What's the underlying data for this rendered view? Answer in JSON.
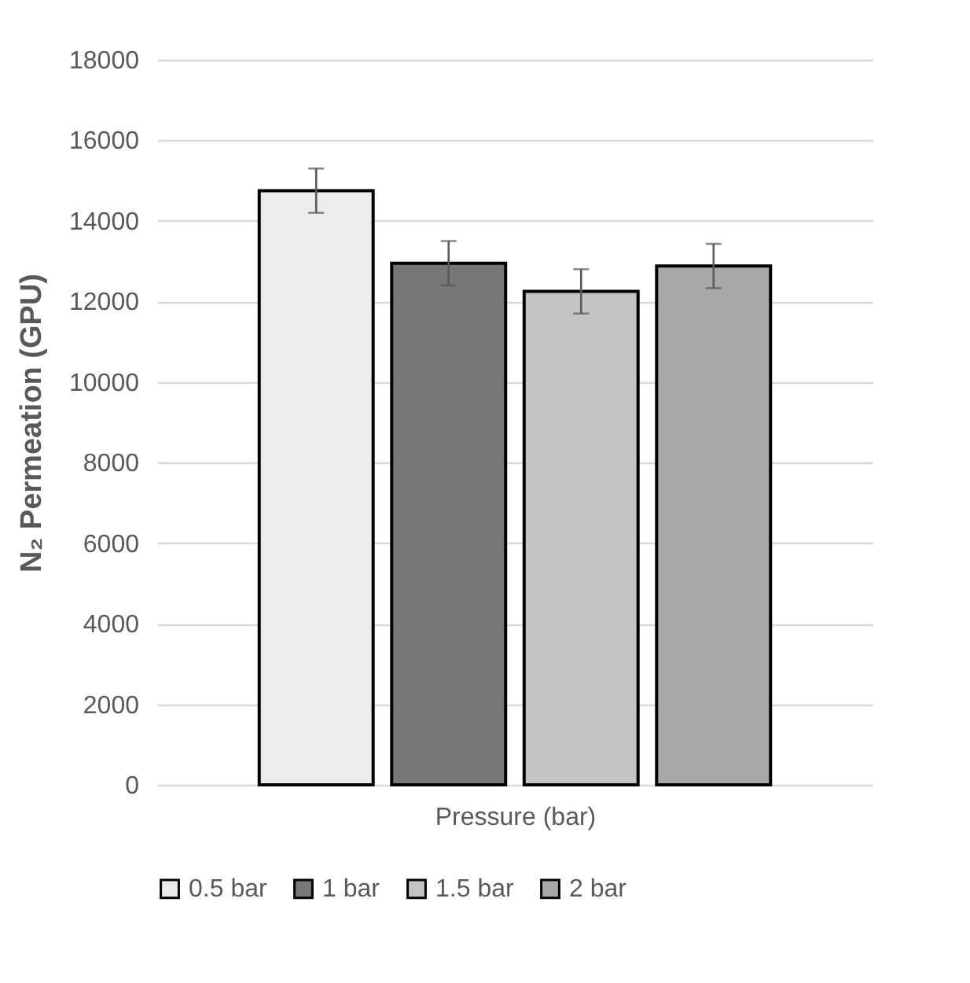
{
  "chart_data": {
    "type": "bar",
    "categories": [
      null
    ],
    "xlabel": "Pressure (bar)",
    "ylabel": "N₂ Permeation (GPU)",
    "ylim": [
      0,
      18000
    ],
    "yticks": [
      0,
      2000,
      4000,
      6000,
      8000,
      10000,
      12000,
      14000,
      16000,
      18000
    ],
    "grid": "y",
    "legend": "bottom",
    "series": [
      {
        "name": "0.5 bar",
        "color": "#ececec",
        "values": [
          14750
        ],
        "errors": [
          550
        ]
      },
      {
        "name": "1 bar",
        "color": "#777777",
        "values": [
          12950
        ],
        "errors": [
          550
        ]
      },
      {
        "name": "1.5 bar",
        "color": "#c4c4c4",
        "values": [
          12250
        ],
        "errors": [
          550
        ]
      },
      {
        "name": "2 bar",
        "color": "#a8a8a8",
        "values": [
          12880
        ],
        "errors": [
          550
        ]
      }
    ]
  }
}
